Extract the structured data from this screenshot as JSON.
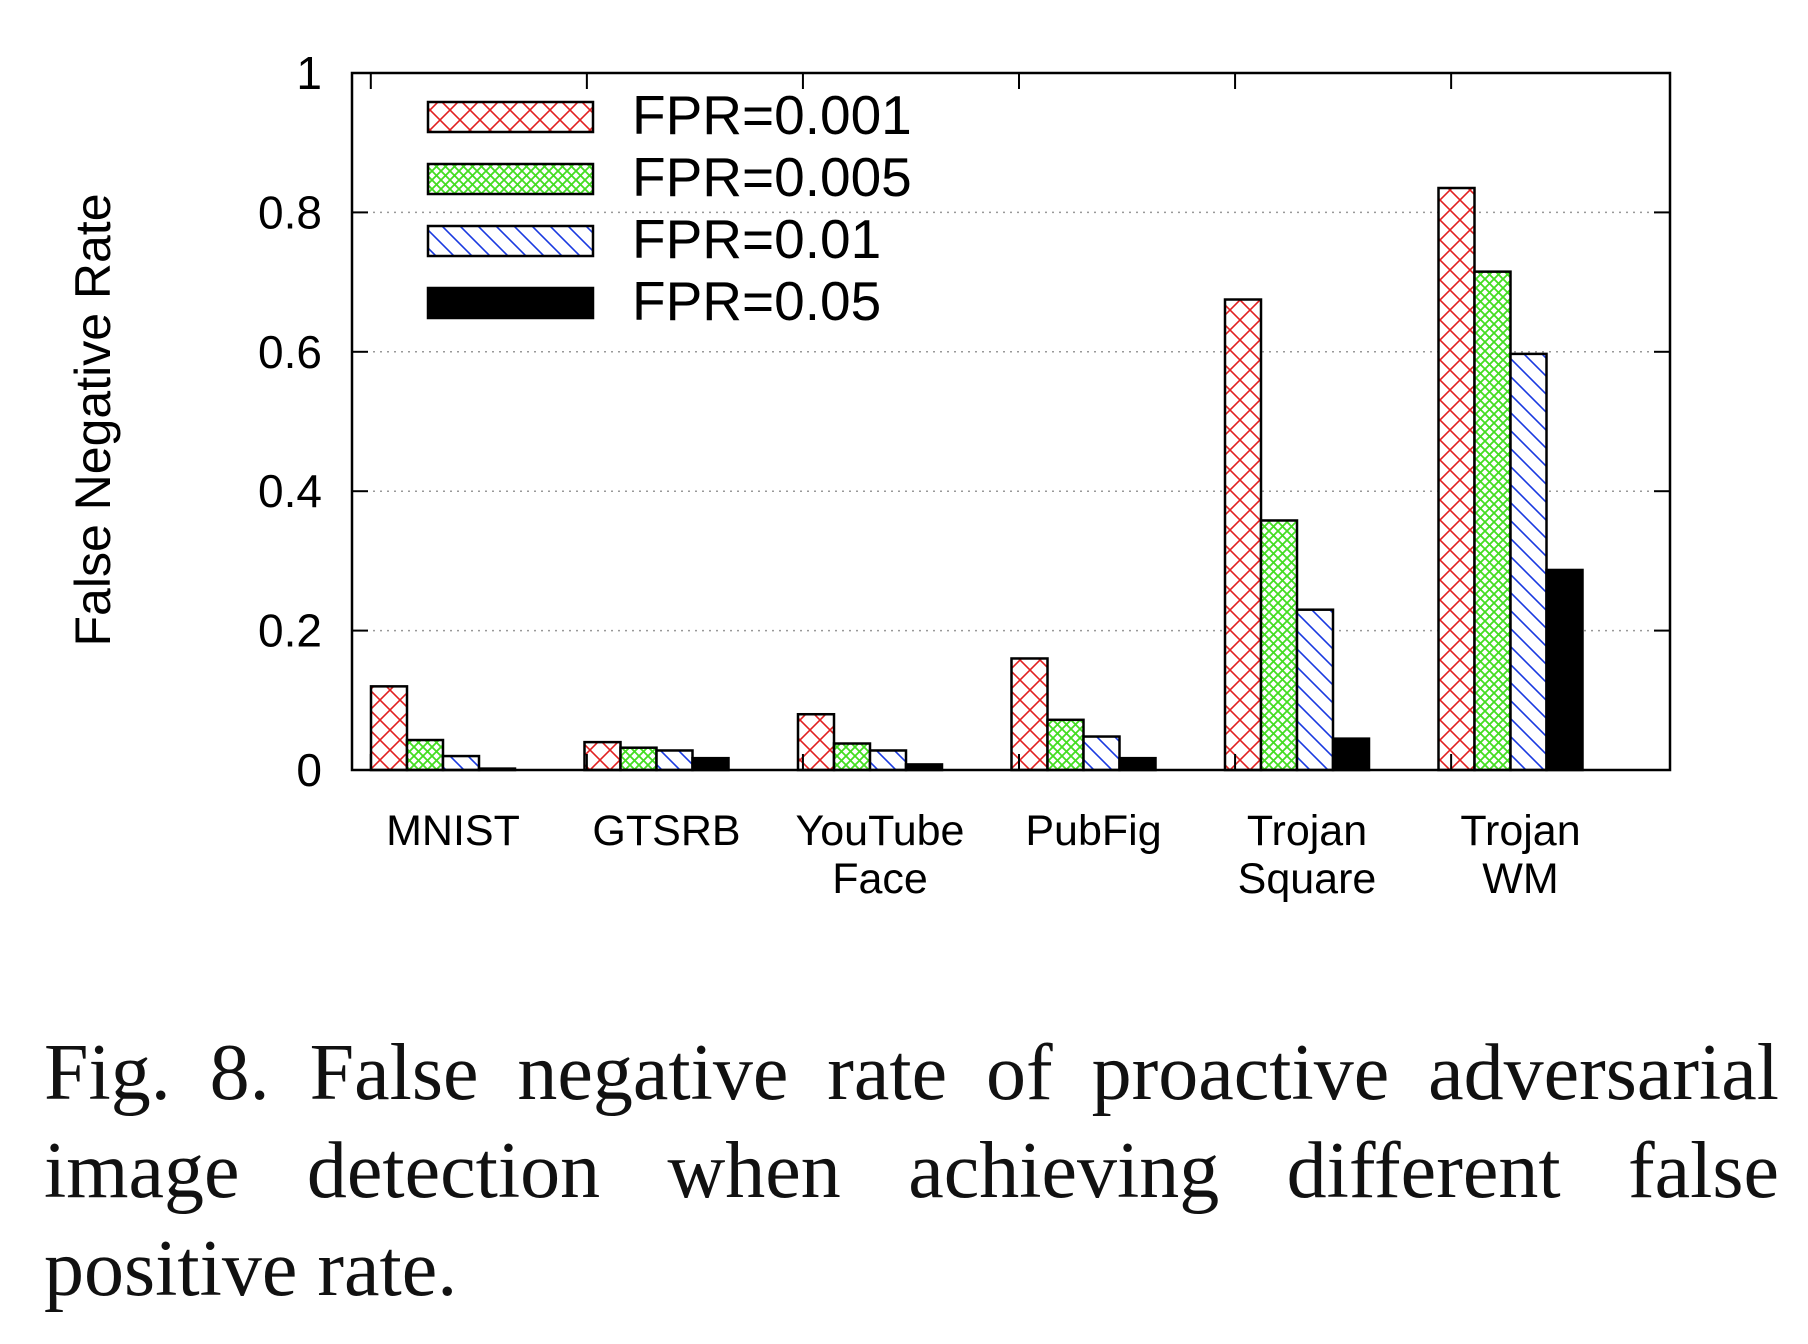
{
  "chart_data": {
    "type": "bar",
    "ylabel": "False Negative Rate",
    "xlabel": "",
    "ylim": [
      0,
      1
    ],
    "yticks": [
      "0",
      "0.2",
      "0.4",
      "0.6",
      "0.8",
      "1"
    ],
    "grid": "horizontal dotted",
    "legend_position": "top-left",
    "categories": [
      [
        "MNIST"
      ],
      [
        "GTSRB"
      ],
      [
        "YouTube",
        "Face"
      ],
      [
        "PubFig"
      ],
      [
        "Trojan",
        "Square"
      ],
      [
        "Trojan",
        "WM"
      ]
    ],
    "series": [
      {
        "name": "FPR=0.001",
        "pattern": "red-crosshatch",
        "color": "#e02020",
        "values": [
          0.12,
          0.04,
          0.08,
          0.16,
          0.675,
          0.835
        ]
      },
      {
        "name": "FPR=0.005",
        "pattern": "green-crosshatch",
        "color": "#44dd22",
        "values": [
          0.043,
          0.032,
          0.038,
          0.072,
          0.358,
          0.715
        ]
      },
      {
        "name": "FPR=0.01",
        "pattern": "blue-diagonal",
        "color": "#1a3ae0",
        "values": [
          0.02,
          0.028,
          0.028,
          0.048,
          0.23,
          0.597
        ]
      },
      {
        "name": "FPR=0.05",
        "pattern": "solid-black",
        "color": "#000000",
        "values": [
          0.002,
          0.017,
          0.008,
          0.017,
          0.045,
          0.287
        ]
      }
    ]
  },
  "caption": {
    "label": "Fig. 8.",
    "text": "False negative rate of proactive adversarial image detection when achieving different false positive rate."
  }
}
